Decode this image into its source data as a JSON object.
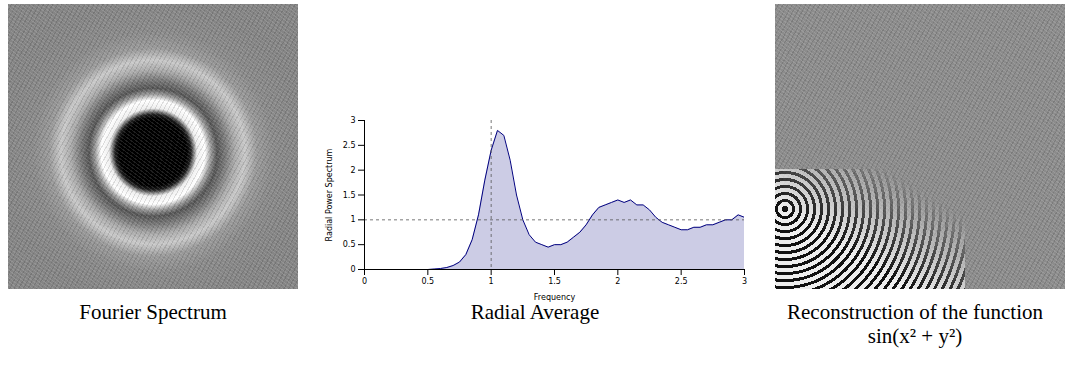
{
  "figure": {
    "panels": [
      {
        "caption": "Fourier Spectrum"
      },
      {
        "caption": "Radial Average"
      },
      {
        "caption": "Reconstruction of the function sin(x² + y²)"
      }
    ]
  },
  "chart_data": {
    "type": "area",
    "x_label": "Frequency",
    "y_label": "Radial Power Spectrum",
    "x": [
      0,
      0.05,
      0.1,
      0.15,
      0.2,
      0.25,
      0.3,
      0.35,
      0.4,
      0.45,
      0.5,
      0.55,
      0.6,
      0.65,
      0.7,
      0.75,
      0.8,
      0.85,
      0.9,
      0.95,
      1,
      1.05,
      1.1,
      1.15,
      1.2,
      1.25,
      1.3,
      1.35,
      1.4,
      1.45,
      1.5,
      1.55,
      1.6,
      1.65,
      1.7,
      1.75,
      1.8,
      1.85,
      1.9,
      1.95,
      2,
      2.05,
      2.1,
      2.15,
      2.2,
      2.25,
      2.3,
      2.35,
      2.4,
      2.45,
      2.5,
      2.55,
      2.6,
      2.65,
      2.7,
      2.75,
      2.8,
      2.85,
      2.9,
      2.95,
      3
    ],
    "values": [
      0,
      0,
      0,
      0,
      0,
      0,
      0,
      0,
      0,
      0,
      0,
      0.01,
      0.02,
      0.04,
      0.08,
      0.15,
      0.3,
      0.6,
      1.1,
      1.8,
      2.4,
      2.8,
      2.7,
      2.2,
      1.5,
      1.0,
      0.7,
      0.55,
      0.5,
      0.45,
      0.5,
      0.5,
      0.55,
      0.65,
      0.75,
      0.9,
      1.1,
      1.25,
      1.3,
      1.35,
      1.4,
      1.35,
      1.4,
      1.3,
      1.3,
      1.2,
      1.05,
      0.95,
      0.9,
      0.85,
      0.8,
      0.8,
      0.85,
      0.85,
      0.9,
      0.9,
      0.95,
      1.0,
      1.0,
      1.1,
      1.05
    ],
    "color": "#00007f",
    "reference_lines": {
      "x": 1,
      "y": 1
    },
    "line_style": "dashed",
    "xlim": [
      0,
      3
    ],
    "xticks": [
      0,
      0.5,
      1,
      1.5,
      2,
      2.5,
      3
    ],
    "ylim": [
      0,
      3
    ],
    "yticks": [
      0,
      0.5,
      1,
      1.5,
      2,
      2.5,
      3
    ],
    "grid": false
  }
}
